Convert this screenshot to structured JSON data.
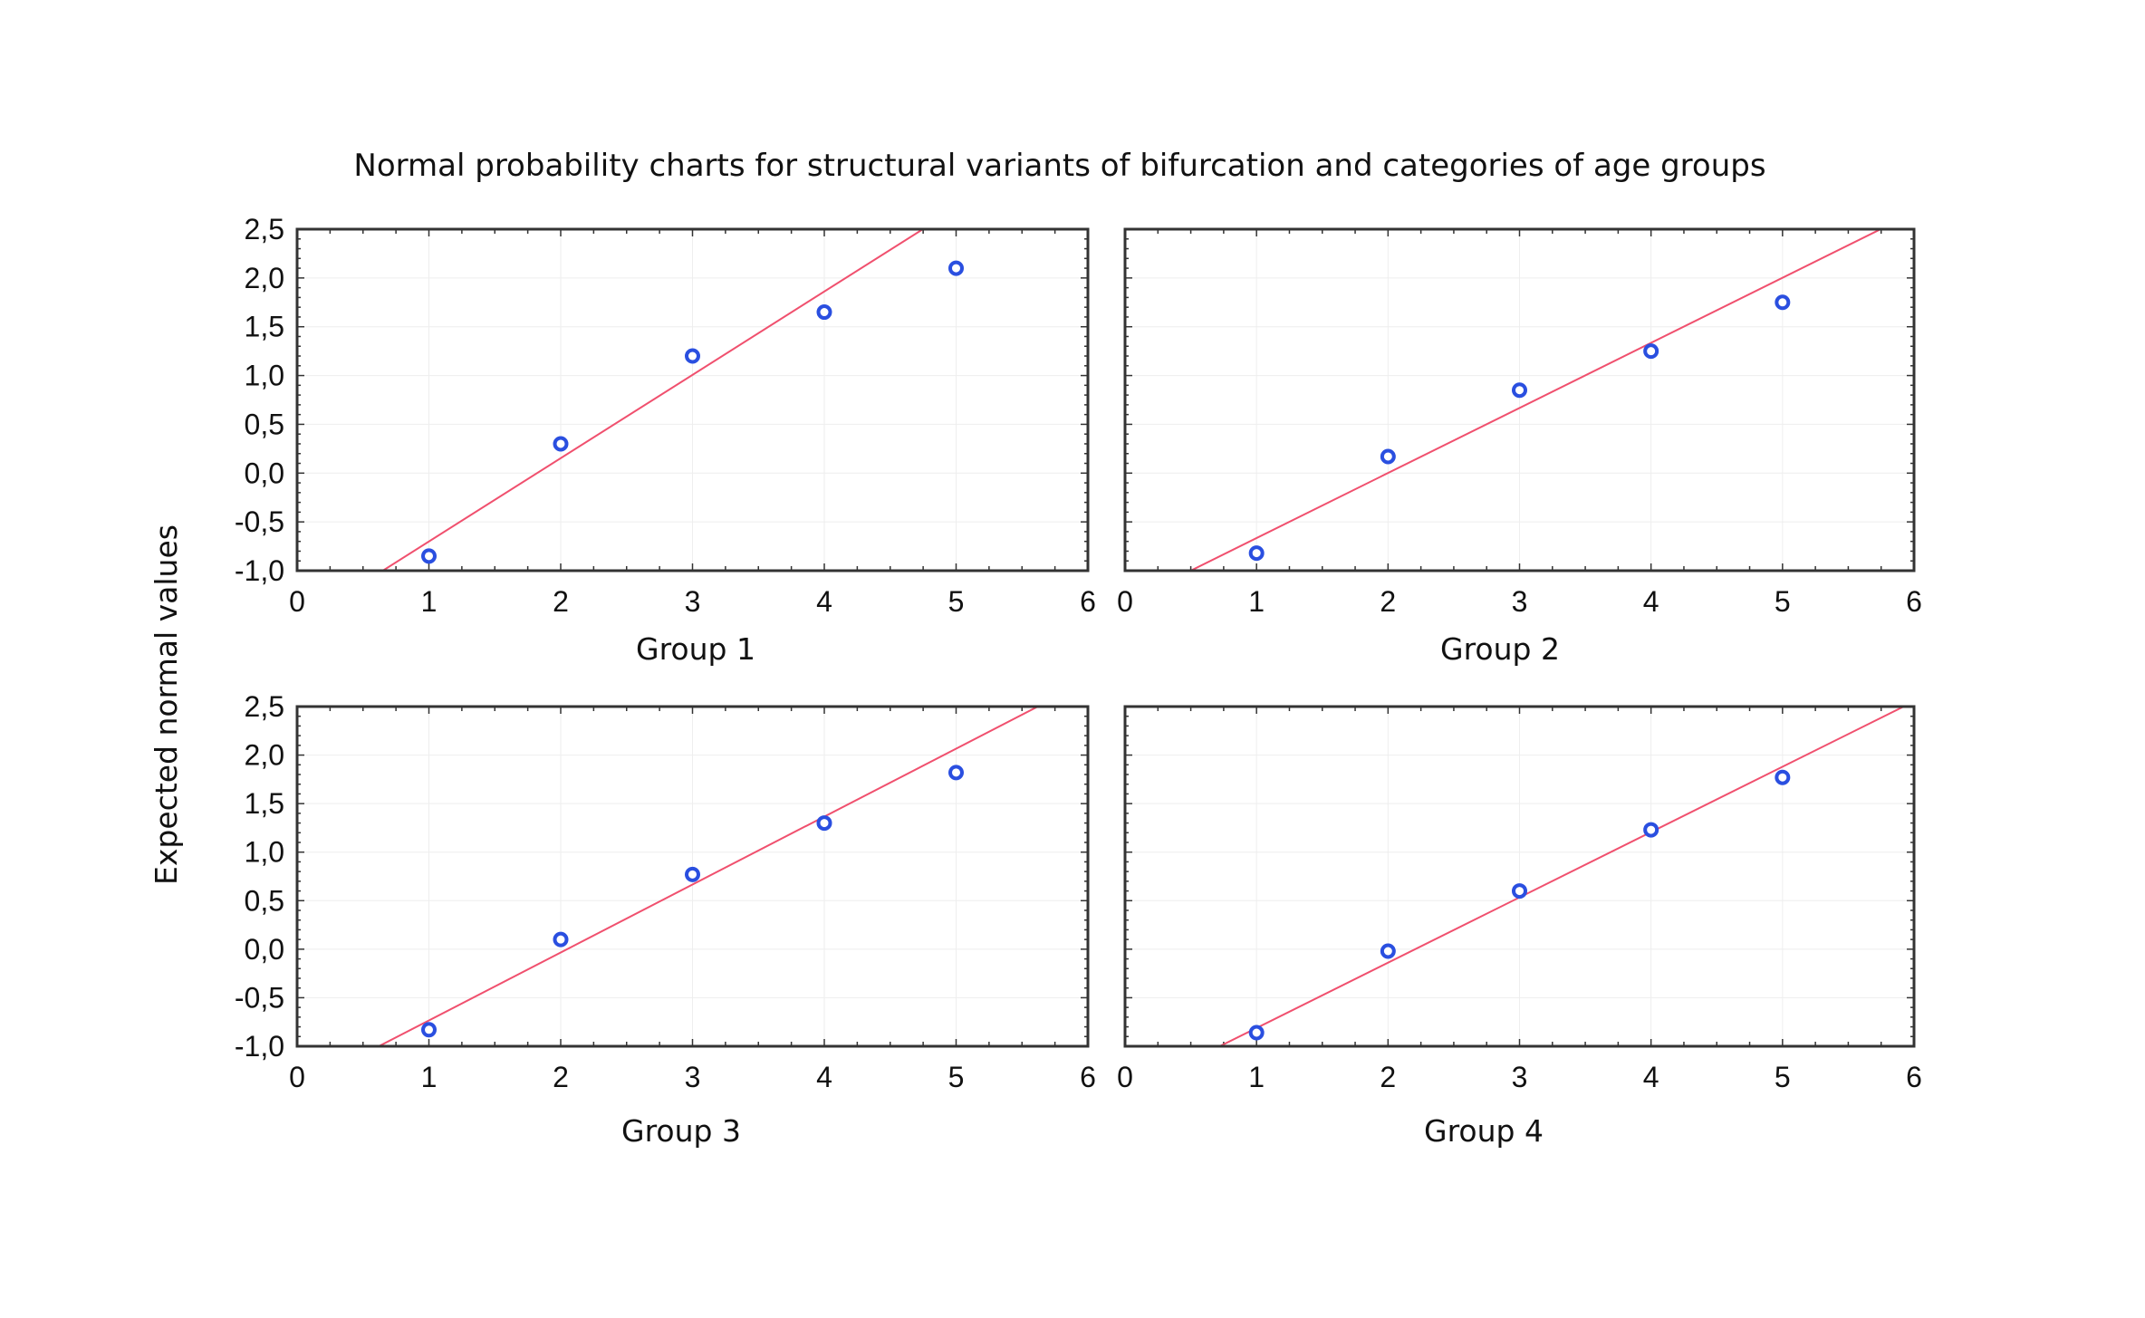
{
  "chart_data": {
    "type": "scatter",
    "title": "Normal probability charts for structural variants of bifurcation and categories of age groups",
    "ylabel": "Expected normal values",
    "xlim": [
      0,
      6
    ],
    "ylim": [
      -1.0,
      2.5
    ],
    "xticks": [
      "0",
      "1",
      "2",
      "3",
      "4",
      "5",
      "6"
    ],
    "yticks": [
      "-1,0",
      "-0,5",
      "0,0",
      "0,5",
      "1,0",
      "1,5",
      "2,0",
      "2,5"
    ],
    "grid": true,
    "colors": {
      "points": "#2a4fe0",
      "line": "#f0506e",
      "frame": "#333333"
    },
    "panels": [
      {
        "name": "Group 1",
        "x": [
          1,
          2,
          3,
          4,
          5
        ],
        "y": [
          -0.85,
          0.3,
          1.2,
          1.65,
          2.1
        ],
        "fit": {
          "slope": 0.854,
          "intercept": -1.555
        }
      },
      {
        "name": "Group 2",
        "x": [
          1,
          2,
          3,
          4,
          5
        ],
        "y": [
          -0.82,
          0.17,
          0.85,
          1.25,
          1.75
        ],
        "fit": {
          "slope": 0.667,
          "intercept": -1.333
        }
      },
      {
        "name": "Group 3",
        "x": [
          1,
          2,
          3,
          4,
          5
        ],
        "y": [
          -0.83,
          0.1,
          0.77,
          1.3,
          1.82
        ],
        "fit": {
          "slope": 0.7,
          "intercept": -1.434
        }
      },
      {
        "name": "Group 4",
        "x": [
          1,
          2,
          3,
          4,
          5
        ],
        "y": [
          -0.86,
          -0.02,
          0.6,
          1.23,
          1.77
        ],
        "fit": {
          "slope": 0.673,
          "intercept": -1.485
        }
      }
    ]
  }
}
